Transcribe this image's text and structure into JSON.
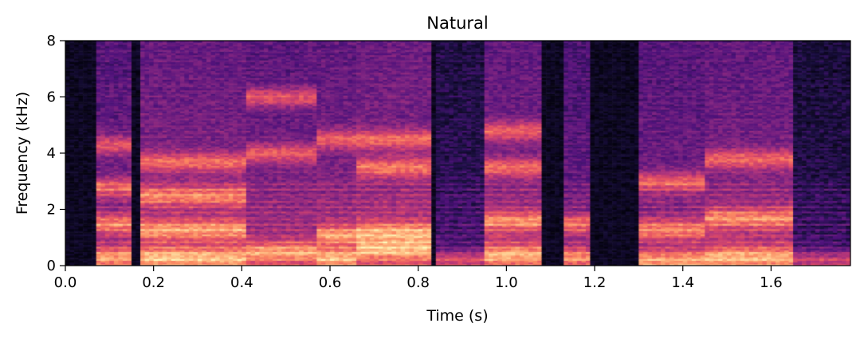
{
  "chart_data": {
    "type": "heatmap",
    "title": "Natural",
    "xlabel": "Time (s)",
    "ylabel": "Frequency (kHz)",
    "xlim": [
      0.0,
      1.78
    ],
    "ylim": [
      0,
      8
    ],
    "xticks": [
      "0.0",
      "0.2",
      "0.4",
      "0.6",
      "0.8",
      "1.0",
      "1.2",
      "1.4",
      "1.6"
    ],
    "yticks": [
      "0",
      "2",
      "4",
      "6",
      "8"
    ],
    "colormap": "magma",
    "grid": false,
    "segments": [
      {
        "start": 0.07,
        "end": 0.15,
        "level": 0.55,
        "formants": [
          0.3,
          1.5,
          2.8,
          4.3
        ]
      },
      {
        "start": 0.17,
        "end": 0.41,
        "level": 0.62,
        "formants": [
          0.3,
          1.3,
          2.5,
          3.7
        ]
      },
      {
        "start": 0.41,
        "end": 0.57,
        "level": 0.58,
        "formants": [
          0.5,
          4.0,
          6.0
        ]
      },
      {
        "start": 0.57,
        "end": 0.66,
        "level": 0.6,
        "formants": [
          1.1,
          0.3,
          4.5
        ]
      },
      {
        "start": 0.66,
        "end": 0.83,
        "level": 0.64,
        "formants": [
          1.2,
          0.6,
          3.5,
          4.5
        ]
      },
      {
        "start": 0.84,
        "end": 0.98,
        "level": 0.32,
        "formants": [
          0.2
        ]
      },
      {
        "start": 0.95,
        "end": 1.08,
        "level": 0.6,
        "formants": [
          0.4,
          1.6,
          3.5,
          4.8
        ]
      },
      {
        "start": 1.13,
        "end": 1.19,
        "level": 0.5,
        "formants": [
          0.3,
          1.5
        ]
      },
      {
        "start": 1.3,
        "end": 1.45,
        "level": 0.55,
        "formants": [
          0.2,
          1.3,
          3.0
        ]
      },
      {
        "start": 1.45,
        "end": 1.65,
        "level": 0.6,
        "formants": [
          0.3,
          1.7,
          3.8
        ]
      },
      {
        "start": 1.65,
        "end": 1.78,
        "level": 0.28,
        "formants": [
          0.2
        ]
      }
    ]
  }
}
